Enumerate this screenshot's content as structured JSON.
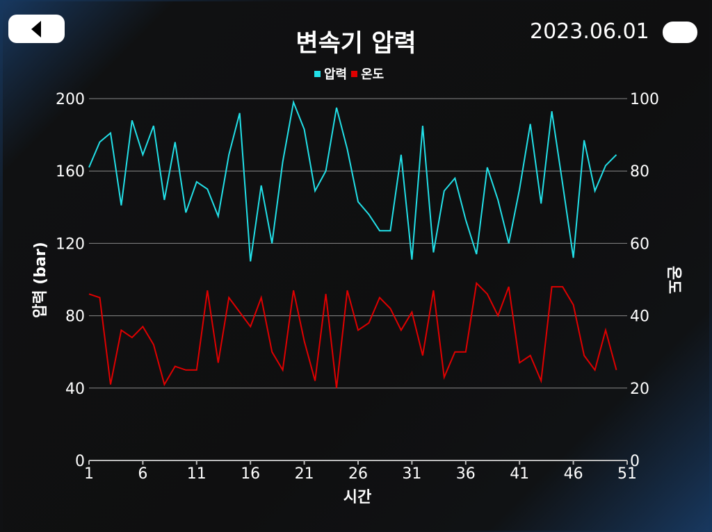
{
  "header": {
    "title": "변속기 압력",
    "date": "2023.06.01"
  },
  "colors": {
    "pressure": "#22e0e8",
    "temperature": "#e00000",
    "grid": "#8a8a8a"
  },
  "chart_data": {
    "type": "line",
    "title": "변속기 압력",
    "xlabel": "시간",
    "ylabel": "압력 (bar)",
    "y2label": "온도",
    "xlim": [
      1,
      51
    ],
    "ylim": [
      0,
      200
    ],
    "y2lim": [
      0,
      100
    ],
    "grid": true,
    "legend_position": "top-center",
    "x_ticks": [
      "1",
      "6",
      "11",
      "16",
      "21",
      "26",
      "31",
      "36",
      "41",
      "46",
      "51"
    ],
    "y_ticks": [
      "0",
      "40",
      "80",
      "120",
      "160",
      "200"
    ],
    "y2_ticks": [
      "0",
      "20",
      "40",
      "60",
      "80",
      "100"
    ],
    "x": [
      1,
      2,
      3,
      4,
      5,
      6,
      7,
      8,
      9,
      10,
      11,
      12,
      13,
      14,
      15,
      16,
      17,
      18,
      19,
      20,
      21,
      22,
      23,
      24,
      25,
      26,
      27,
      28,
      29,
      30,
      31,
      32,
      33,
      34,
      35,
      36,
      37,
      38,
      39,
      40,
      41,
      42,
      43,
      44,
      45,
      46,
      47,
      48,
      49,
      50
    ],
    "series": [
      {
        "name": "압력",
        "axis": "left",
        "values": [
          162,
          176,
          181,
          141,
          188,
          169,
          185,
          144,
          176,
          137,
          154,
          150,
          135,
          169,
          192,
          110,
          152,
          120,
          165,
          198,
          183,
          149,
          160,
          195,
          172,
          143,
          136,
          127,
          127,
          169,
          111,
          185,
          115,
          149,
          156,
          133,
          114,
          162,
          144,
          120,
          150,
          186,
          142,
          193,
          153,
          112,
          177,
          149,
          163,
          169
        ]
      },
      {
        "name": "온도",
        "axis": "right",
        "values": [
          46,
          45,
          21,
          36,
          34,
          37,
          32,
          21,
          26,
          25,
          25,
          47,
          27,
          45,
          41,
          37,
          45,
          30,
          25,
          47,
          33,
          22,
          46,
          20,
          47,
          36,
          38,
          45,
          42,
          36,
          41,
          29,
          47,
          23,
          30,
          30,
          49,
          46,
          40,
          48,
          27,
          29,
          22,
          48,
          48,
          43,
          29,
          25,
          36,
          25
        ]
      }
    ]
  }
}
